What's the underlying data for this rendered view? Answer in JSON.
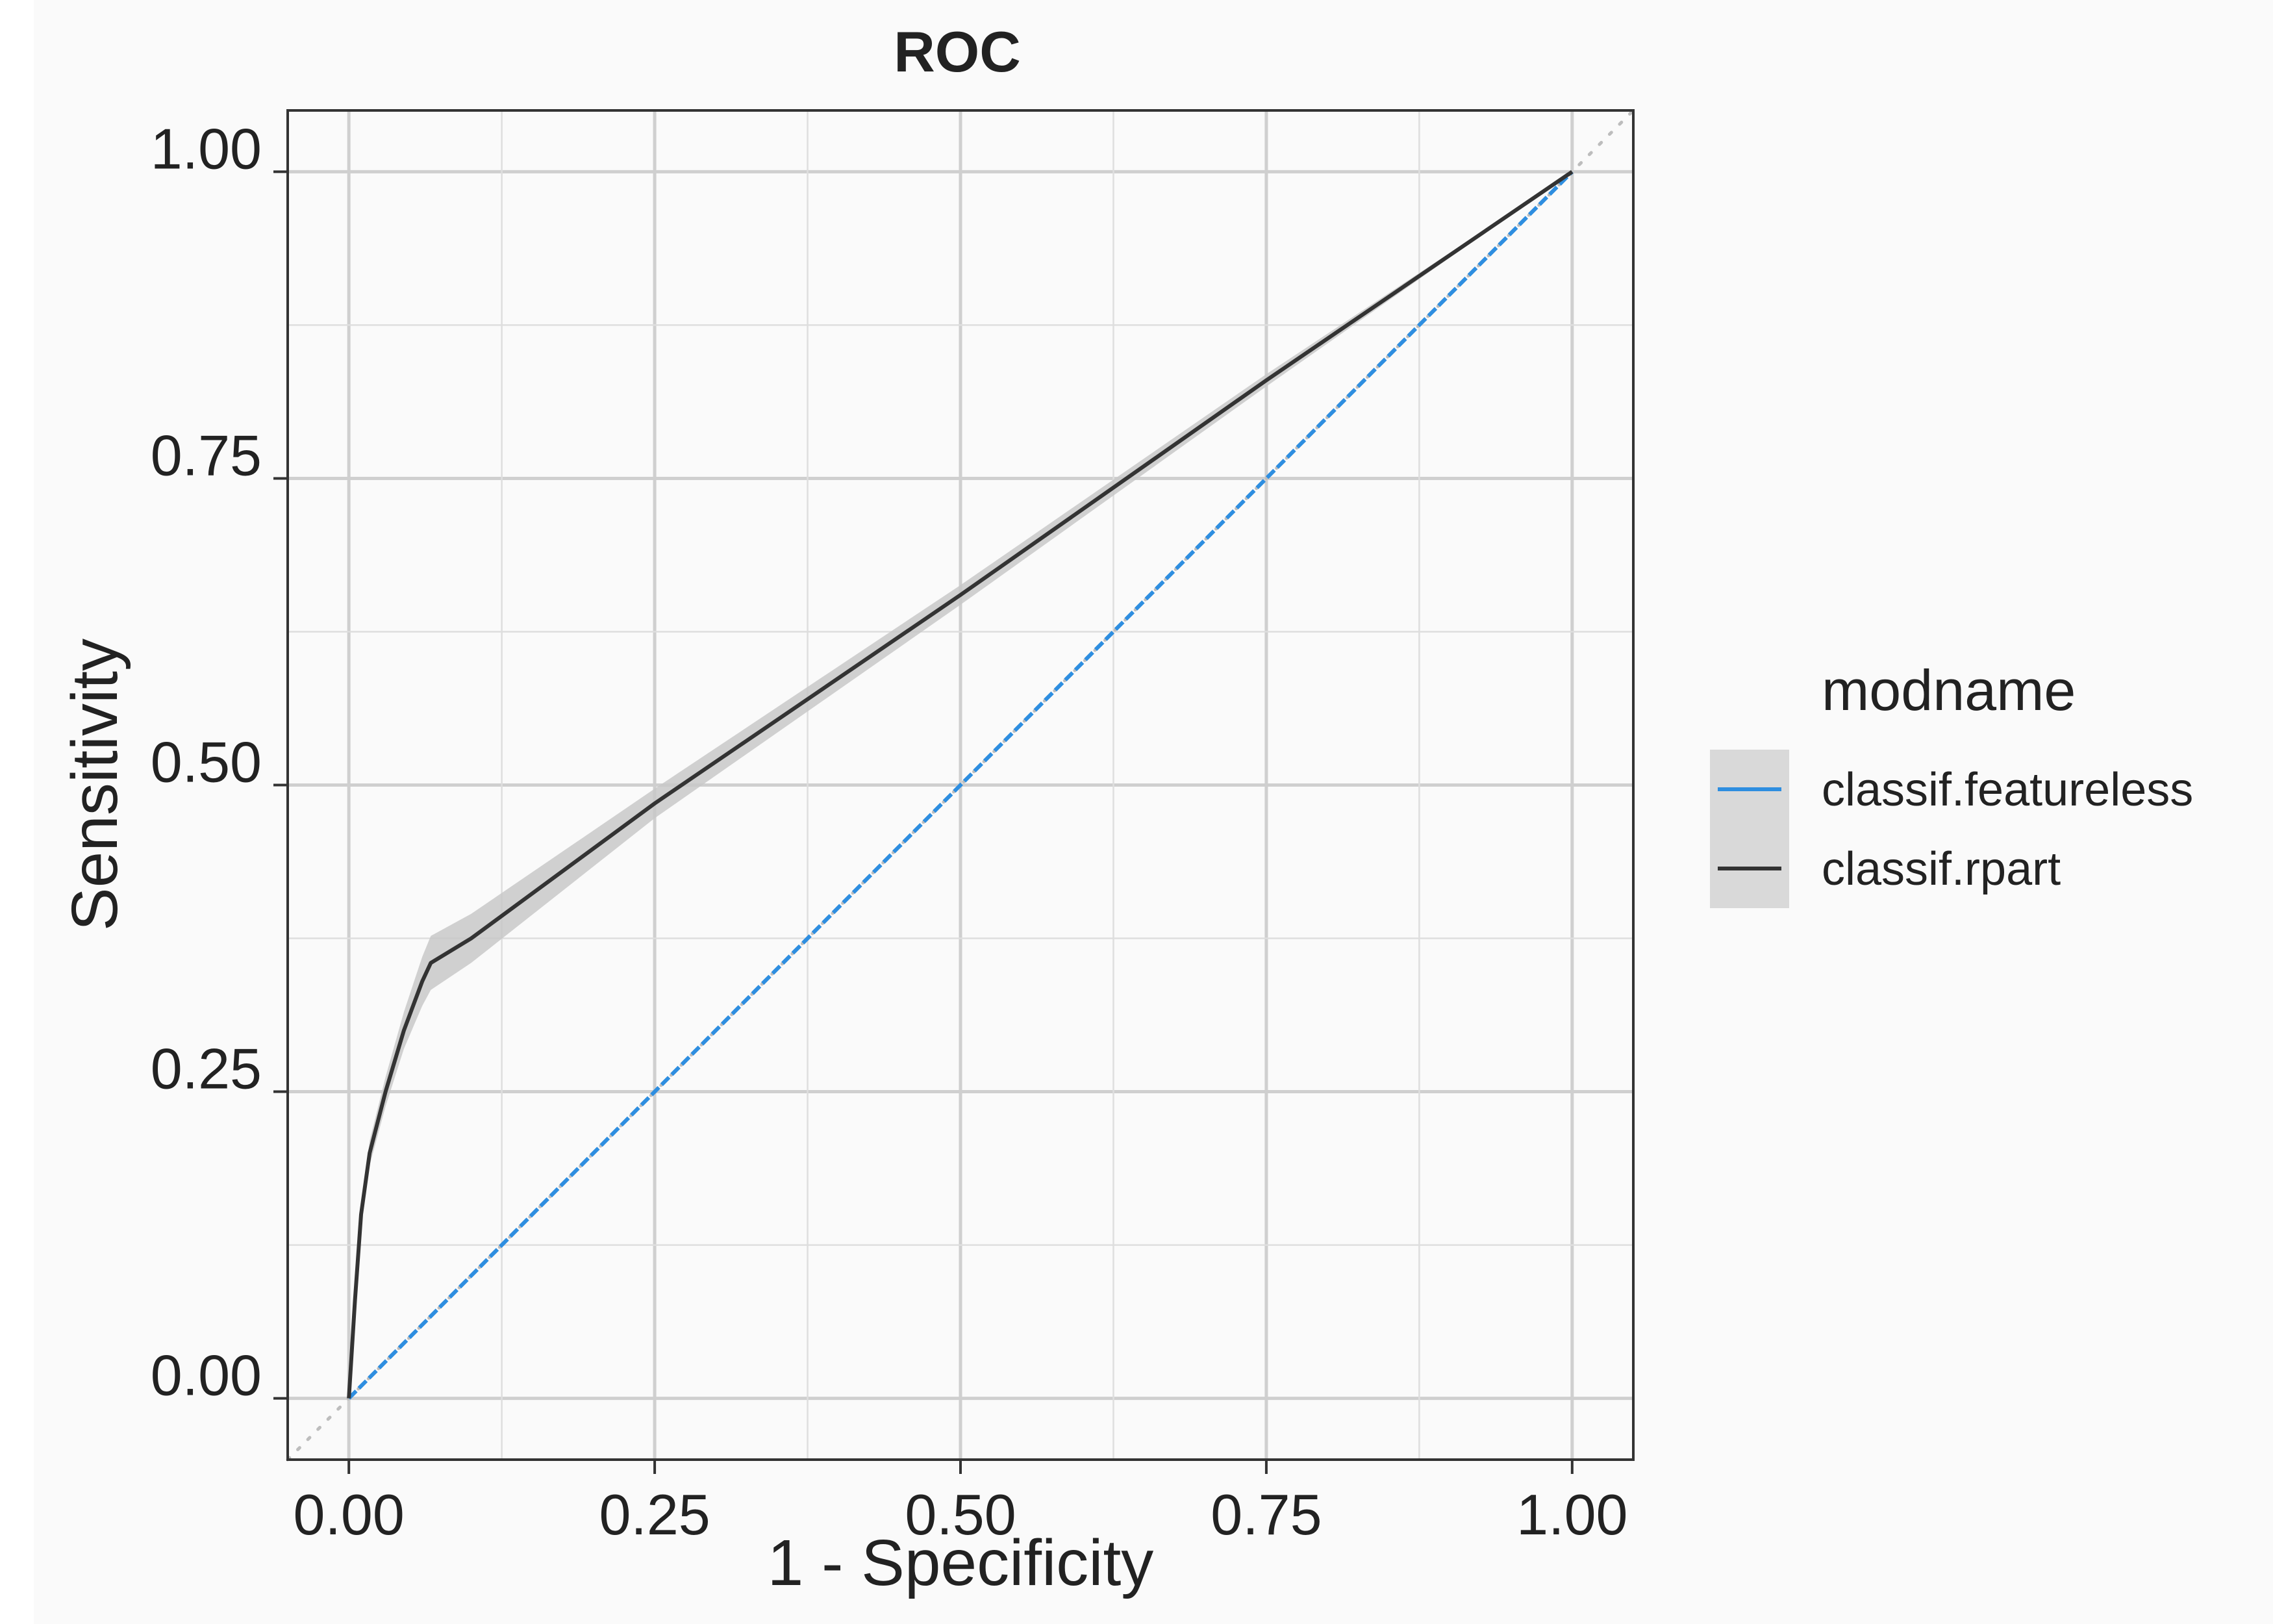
{
  "chart_data": {
    "type": "line",
    "title": "ROC",
    "xlabel": "1 - Specificity",
    "ylabel": "Sensitivity",
    "xlim": [
      -0.05,
      1.05
    ],
    "ylim": [
      -0.05,
      1.05
    ],
    "xticks": [
      "0.00",
      "0.25",
      "0.50",
      "0.75",
      "1.00"
    ],
    "yticks": [
      "0.00",
      "0.25",
      "0.50",
      "0.75",
      "1.00"
    ],
    "grid": true,
    "legend": {
      "title": "modname",
      "position": "right"
    },
    "reference_line": {
      "style": "dotted",
      "color": "#bdbdbd",
      "x": [
        -0.05,
        1.05
      ],
      "y": [
        -0.05,
        1.05
      ]
    },
    "series": [
      {
        "name": "classif.featureless",
        "color": "#2e8ee0",
        "style": "dashed",
        "x": [
          0,
          1
        ],
        "y": [
          0,
          1
        ],
        "ci_width": 0.0
      },
      {
        "name": "classif.rpart",
        "color": "#333333",
        "style": "solid",
        "band_color": "#c8c8c8",
        "x": [
          0.0,
          0.005,
          0.01,
          0.017,
          0.03,
          0.045,
          0.06,
          0.067,
          0.1,
          0.25,
          0.5,
          0.75,
          1.0
        ],
        "y": [
          0.0,
          0.08,
          0.15,
          0.2,
          0.25,
          0.3,
          0.34,
          0.355,
          0.375,
          0.485,
          0.655,
          0.83,
          1.0
        ],
        "ci_width": [
          0.0,
          0.005,
          0.008,
          0.01,
          0.012,
          0.015,
          0.02,
          0.022,
          0.02,
          0.012,
          0.008,
          0.005,
          0.0
        ]
      }
    ]
  }
}
